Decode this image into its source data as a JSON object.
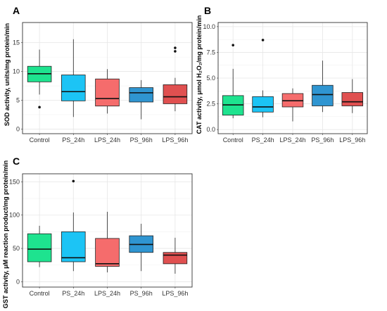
{
  "chart_data": [
    {
      "type": "box",
      "panel_label": "A",
      "ylabel": "SOD activity, units/mg protein/min",
      "categories": [
        "Control",
        "PS_24h",
        "LPS_24h",
        "PS_96h",
        "LPS_96h"
      ],
      "ylim": [
        -0.8,
        18.5
      ],
      "yticks": [
        "0",
        "5",
        "10",
        "15"
      ],
      "ytick_values": [
        0,
        5,
        10,
        15
      ],
      "grid": true,
      "boxes": [
        {
          "min": 6.0,
          "q1": 8.2,
          "median": 9.6,
          "q3": 10.9,
          "max": 13.8,
          "outliers": [
            3.8
          ]
        },
        {
          "min": 2.1,
          "q1": 4.9,
          "median": 6.5,
          "q3": 9.4,
          "max": 15.6,
          "outliers": []
        },
        {
          "min": 2.7,
          "q1": 4.0,
          "median": 5.3,
          "q3": 8.7,
          "max": 10.4,
          "outliers": []
        },
        {
          "min": 1.7,
          "q1": 4.7,
          "median": 6.3,
          "q3": 7.2,
          "max": 8.5,
          "outliers": []
        },
        {
          "min": 3.1,
          "q1": 4.4,
          "median": 5.6,
          "q3": 7.7,
          "max": 8.9,
          "outliers": [
            13.5,
            14.1
          ]
        }
      ]
    },
    {
      "type": "box",
      "panel_label": "B",
      "ylabel": "CAT activity, μmol H₂O₂/mg protein/min",
      "categories": [
        "Control",
        "PS_24h",
        "LPS_24h",
        "PS_96h",
        "LPS_96h"
      ],
      "ylim": [
        -0.4,
        10.4
      ],
      "yticks": [
        "0.0",
        "2.5",
        "5.0",
        "7.5",
        "10.0"
      ],
      "ytick_values": [
        0,
        2.5,
        5,
        7.5,
        10
      ],
      "grid": true,
      "boxes": [
        {
          "min": 1.1,
          "q1": 1.4,
          "median": 2.4,
          "q3": 3.3,
          "max": 5.9,
          "outliers": [
            8.2
          ]
        },
        {
          "min": 1.2,
          "q1": 1.7,
          "median": 2.2,
          "q3": 3.2,
          "max": 3.8,
          "outliers": [
            8.7
          ]
        },
        {
          "min": 0.8,
          "q1": 2.2,
          "median": 2.8,
          "q3": 3.5,
          "max": 4.0,
          "outliers": []
        },
        {
          "min": 1.7,
          "q1": 2.3,
          "median": 3.4,
          "q3": 4.3,
          "max": 6.7,
          "outliers": []
        },
        {
          "min": 1.6,
          "q1": 2.3,
          "median": 2.7,
          "q3": 3.6,
          "max": 4.9,
          "outliers": []
        }
      ]
    },
    {
      "type": "box",
      "panel_label": "C",
      "ylabel": "GST activity, μM reaction product/mg protein/min",
      "categories": [
        "Control",
        "PS_24h",
        "LPS_24h",
        "PS_96h",
        "LPS_96h"
      ],
      "ylim": [
        -8,
        162
      ],
      "yticks": [
        "0",
        "50",
        "100",
        "150"
      ],
      "ytick_values": [
        0,
        50,
        100,
        150
      ],
      "grid": true,
      "boxes": [
        {
          "min": 22,
          "q1": 30,
          "median": 49,
          "q3": 72,
          "max": 84,
          "outliers": []
        },
        {
          "min": 16,
          "q1": 30,
          "median": 36,
          "q3": 75,
          "max": 104,
          "outliers": [
            151
          ]
        },
        {
          "min": 14,
          "q1": 23,
          "median": 27,
          "q3": 65,
          "max": 105,
          "outliers": []
        },
        {
          "min": 16,
          "q1": 44,
          "median": 56,
          "q3": 69,
          "max": 87,
          "outliers": []
        },
        {
          "min": 12,
          "q1": 27,
          "median": 40,
          "q3": 44,
          "max": 66,
          "outliers": []
        }
      ]
    }
  ],
  "colors": {
    "Control": "#1ee38f",
    "PS_24h": "#1cc4f5",
    "LPS_24h": "#f56c6c",
    "PS_96h": "#2f95d1",
    "LPS_96h": "#e05050",
    "grid": "#e6e6e6",
    "frame": "#333333"
  }
}
